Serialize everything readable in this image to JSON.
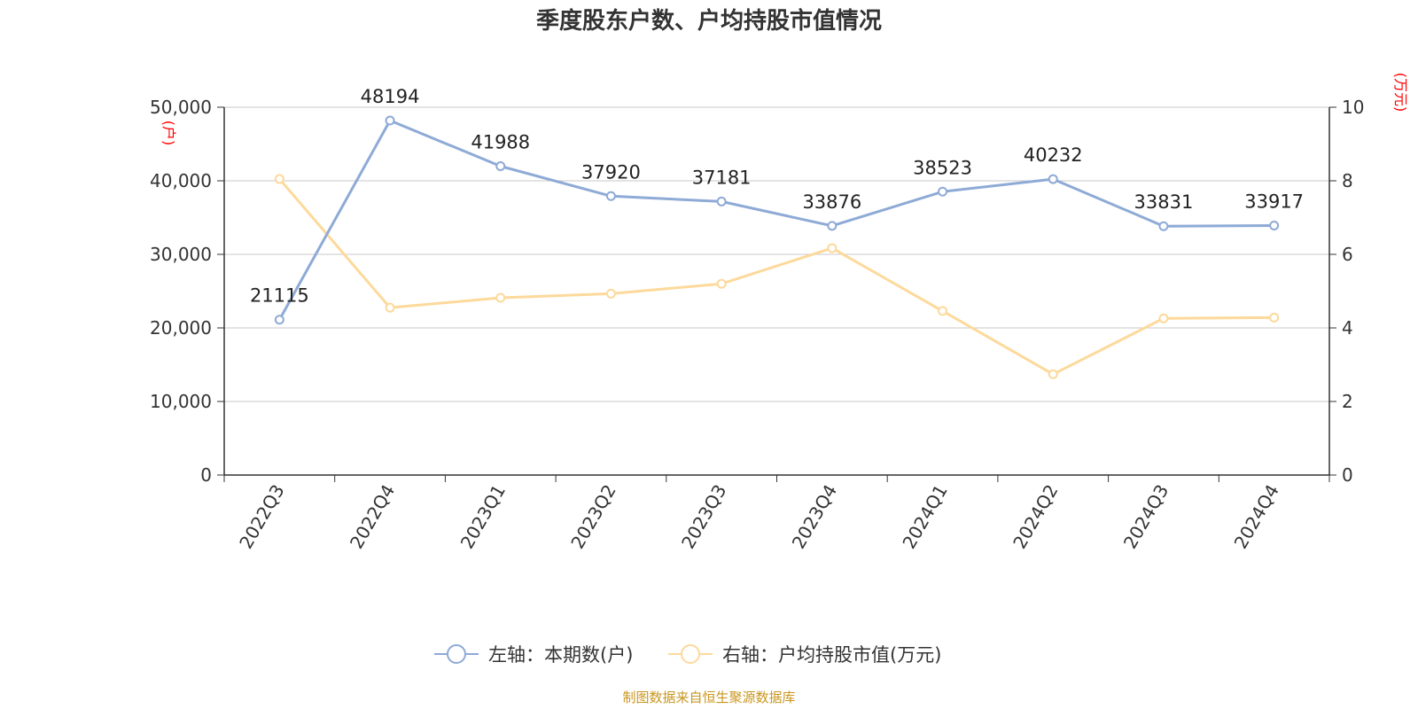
{
  "chart_data": {
    "type": "line",
    "title": "季度股东户数、户均持股市值情况",
    "categories": [
      "2022Q3",
      "2022Q4",
      "2023Q1",
      "2023Q2",
      "2023Q3",
      "2023Q4",
      "2024Q1",
      "2024Q2",
      "2024Q3",
      "2024Q4"
    ],
    "series": [
      {
        "name": "左轴：本期数(户)",
        "axis": "left",
        "color": "#8eaad6",
        "values": [
          21115,
          48194,
          41988,
          37920,
          37181,
          33876,
          38523,
          40232,
          33831,
          33917
        ],
        "show_labels": true
      },
      {
        "name": "右轴：户均持股市值(万元)",
        "axis": "right",
        "color": "#fdd99b",
        "values": [
          8.05,
          4.55,
          4.82,
          4.93,
          5.2,
          6.17,
          4.46,
          2.74,
          4.26,
          4.28
        ],
        "show_labels": false
      }
    ],
    "y_left": {
      "min": 0,
      "max": 50000,
      "ticks": [
        "0",
        "10,000",
        "20,000",
        "30,000",
        "40,000",
        "50,000"
      ],
      "unit": "(户)"
    },
    "y_right": {
      "min": 0,
      "max": 10,
      "ticks": [
        "0",
        "2",
        "4",
        "6",
        "8",
        "10"
      ],
      "unit": "(万元)"
    },
    "grid": true,
    "legend_position": "bottom"
  },
  "source": "制图数据来自恒生聚源数据库"
}
